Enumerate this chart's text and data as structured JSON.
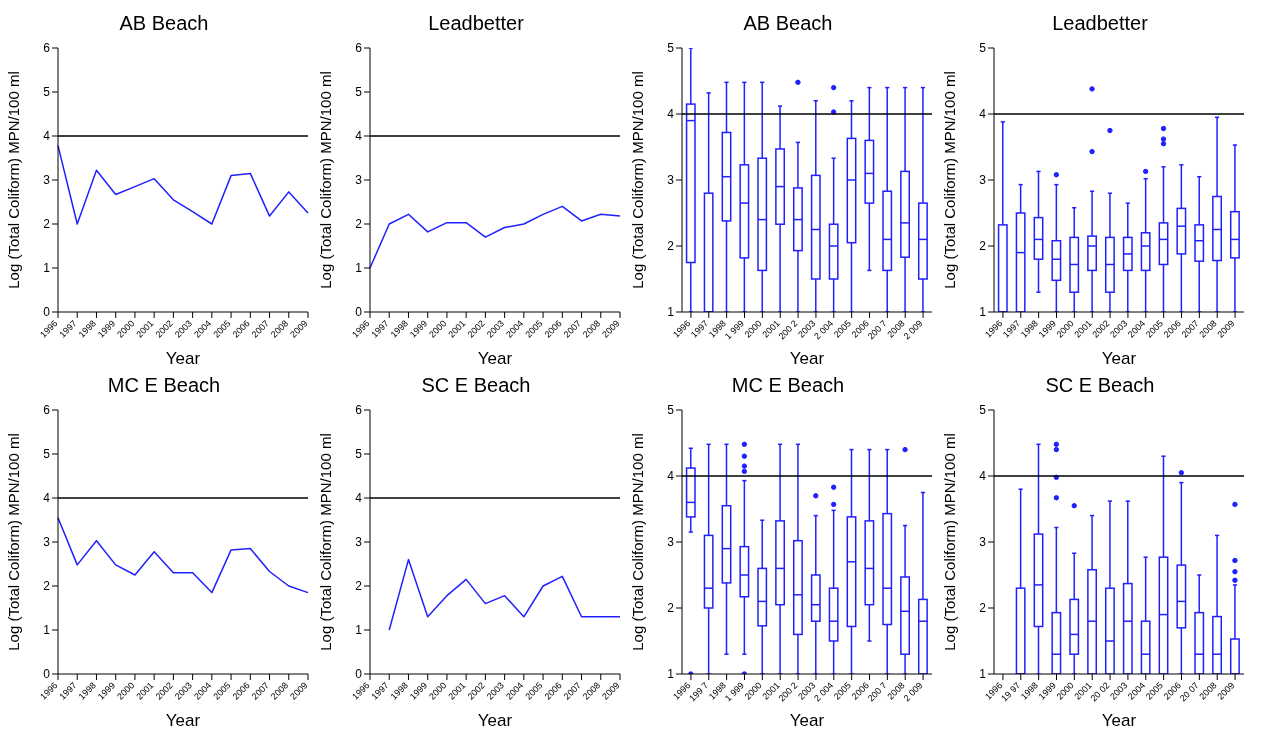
{
  "chart_data": [
    {
      "type": "line",
      "title": "AB Beach",
      "xlabel": "Year",
      "ylabel": "Log (Total Coliform) MPN/100 ml",
      "categories": [
        "1996",
        "1997",
        "1998",
        "1999",
        "2000",
        "2001",
        "2002",
        "2003",
        "2004",
        "2005",
        "2006",
        "2007",
        "2008",
        "2009"
      ],
      "color": "#2020ff",
      "values": [
        3.78,
        2.0,
        3.22,
        2.67,
        2.85,
        3.03,
        2.55,
        2.28,
        2.0,
        3.1,
        3.15,
        2.18,
        2.73,
        2.25
      ],
      "ylim": [
        0,
        6
      ],
      "yticks": [
        0,
        1,
        2,
        3,
        4,
        5,
        6
      ],
      "ref_lines": [
        {
          "axis": "y",
          "value": 4,
          "color": "#000000"
        }
      ]
    },
    {
      "type": "line",
      "title": "Leadbetter",
      "xlabel": "Year",
      "ylabel": "Log (Total Coliform) MPN/100 ml",
      "categories": [
        "1996",
        "1997",
        "1998",
        "1999",
        "2000",
        "2001",
        "2002",
        "2003",
        "2004",
        "2005",
        "2006",
        "2007",
        "2008",
        "2009"
      ],
      "color": "#2020ff",
      "values": [
        1.0,
        2.0,
        2.22,
        1.82,
        2.03,
        2.03,
        1.7,
        1.92,
        2.0,
        2.22,
        2.4,
        2.07,
        2.22,
        2.18
      ],
      "ylim": [
        0,
        6
      ],
      "yticks": [
        0,
        1,
        2,
        3,
        4,
        5,
        6
      ],
      "ref_lines": [
        {
          "axis": "y",
          "value": 4,
          "color": "#000000"
        }
      ]
    },
    {
      "type": "box",
      "title": "AB Beach",
      "xlabel": "Year",
      "ylabel": "Log (Total Coliform) MPN/100 ml",
      "categories": [
        "1996",
        "1997",
        "1998",
        "1 999",
        "2000",
        "2001",
        "200 2",
        "2003",
        "2 004",
        "2005",
        "2006",
        "200 7",
        "2008",
        "2 009"
      ],
      "color": "#2020ff",
      "ylim": [
        1,
        5
      ],
      "yticks": [
        1,
        2,
        3,
        4,
        5
      ],
      "ref_lines": [
        {
          "axis": "y",
          "value": 4,
          "color": "#000000"
        }
      ],
      "boxes": [
        {
          "low": 1,
          "q1": 1.75,
          "median": 3.9,
          "q3": 4.15,
          "high": 5
        },
        {
          "low": 1,
          "q1": 1,
          "median": 1,
          "q3": 2.8,
          "high": 4.32
        },
        {
          "low": 1,
          "q1": 2.38,
          "median": 3.05,
          "q3": 3.72,
          "high": 4.48
        },
        {
          "low": 1,
          "q1": 1.82,
          "median": 2.65,
          "q3": 3.23,
          "high": 4.48
        },
        {
          "low": 1,
          "q1": 1.63,
          "median": 2.4,
          "q3": 3.33,
          "high": 4.48
        },
        {
          "low": 1,
          "q1": 2.33,
          "median": 2.9,
          "q3": 3.47,
          "high": 4.12
        },
        {
          "low": 1,
          "q1": 1.93,
          "median": 2.4,
          "q3": 2.88,
          "high": 3.57,
          "outliers": [
            4.48
          ]
        },
        {
          "low": 1,
          "q1": 1.5,
          "median": 2.25,
          "q3": 3.07,
          "high": 4.2
        },
        {
          "low": 1,
          "q1": 1.5,
          "median": 2.0,
          "q3": 2.33,
          "high": 3.33,
          "outliers": [
            4.03,
            4.4
          ]
        },
        {
          "low": 1,
          "q1": 2.05,
          "median": 3.0,
          "q3": 3.63,
          "high": 4.2
        },
        {
          "low": 1.63,
          "q1": 2.65,
          "median": 3.1,
          "q3": 3.6,
          "high": 4.4
        },
        {
          "low": 1,
          "q1": 1.63,
          "median": 2.1,
          "q3": 2.83,
          "high": 4.4
        },
        {
          "low": 1,
          "q1": 1.83,
          "median": 2.35,
          "q3": 3.13,
          "high": 4.4
        },
        {
          "low": 1,
          "q1": 1.5,
          "median": 2.1,
          "q3": 2.65,
          "high": 4.4
        }
      ]
    },
    {
      "type": "box",
      "title": "Leadbetter",
      "xlabel": "Year",
      "ylabel": "Log (Total Coliform) MPN/100 ml",
      "categories": [
        "1996",
        "1997",
        "1998",
        "1999",
        "2000",
        "2001",
        "2002",
        "2003",
        "2004",
        "2005",
        "2006",
        "2007",
        "2008",
        "2009"
      ],
      "color": "#2020ff",
      "ylim": [
        1,
        5
      ],
      "yticks": [
        1,
        2,
        3,
        4,
        5
      ],
      "ref_lines": [
        {
          "axis": "y",
          "value": 4,
          "color": "#000000"
        }
      ],
      "boxes": [
        {
          "low": 1,
          "q1": 1,
          "median": 1,
          "q3": 2.32,
          "high": 3.88
        },
        {
          "low": 1,
          "q1": 1,
          "median": 1.9,
          "q3": 2.5,
          "high": 2.93
        },
        {
          "low": 1.3,
          "q1": 1.8,
          "median": 2.1,
          "q3": 2.43,
          "high": 3.13
        },
        {
          "low": 1,
          "q1": 1.48,
          "median": 1.8,
          "q3": 2.08,
          "high": 2.93,
          "outliers": [
            3.08
          ]
        },
        {
          "low": 1,
          "q1": 1.3,
          "median": 1.72,
          "q3": 2.13,
          "high": 2.58
        },
        {
          "low": 1,
          "q1": 1.63,
          "median": 2.0,
          "q3": 2.15,
          "high": 2.83,
          "outliers": [
            3.43,
            4.38
          ]
        },
        {
          "low": 1,
          "q1": 1.3,
          "median": 1.72,
          "q3": 2.13,
          "high": 2.8,
          "outliers": [
            3.75
          ]
        },
        {
          "low": 1,
          "q1": 1.63,
          "median": 1.88,
          "q3": 2.13,
          "high": 2.65
        },
        {
          "low": 1,
          "q1": 1.63,
          "median": 2.0,
          "q3": 2.2,
          "high": 3.02,
          "outliers": [
            3.13
          ]
        },
        {
          "low": 1,
          "q1": 1.72,
          "median": 2.1,
          "q3": 2.35,
          "high": 3.2,
          "outliers": [
            3.55,
            3.62,
            3.78
          ]
        },
        {
          "low": 1,
          "q1": 1.88,
          "median": 2.3,
          "q3": 2.57,
          "high": 3.23
        },
        {
          "low": 1,
          "q1": 1.77,
          "median": 2.08,
          "q3": 2.32,
          "high": 3.05
        },
        {
          "low": 1,
          "q1": 1.78,
          "median": 2.25,
          "q3": 2.75,
          "high": 3.95
        },
        {
          "low": 1,
          "q1": 1.82,
          "median": 2.1,
          "q3": 2.52,
          "high": 3.53
        }
      ]
    },
    {
      "type": "line",
      "title": "MC E Beach",
      "xlabel": "Year",
      "ylabel": "Log (Total Coliform) MPN/100 ml",
      "categories": [
        "1996",
        "1997",
        "1998",
        "1999",
        "2000",
        "2001",
        "2002",
        "2003",
        "2004",
        "2005",
        "2006",
        "2007",
        "2008",
        "2009"
      ],
      "color": "#2020ff",
      "values": [
        3.55,
        2.48,
        3.03,
        2.48,
        2.25,
        2.78,
        2.3,
        2.3,
        1.85,
        2.82,
        2.85,
        2.33,
        2.0,
        1.85
      ],
      "ylim": [
        0,
        6
      ],
      "yticks": [
        0,
        1,
        2,
        3,
        4,
        5,
        6
      ],
      "ref_lines": [
        {
          "axis": "y",
          "value": 4,
          "color": "#000000"
        }
      ]
    },
    {
      "type": "line",
      "title": "SC E Beach",
      "xlabel": "Year",
      "ylabel": "Log (Total Coliform) MPN/100 ml",
      "categories": [
        "1996",
        "1997",
        "1998",
        "1999",
        "2000",
        "2001",
        "2002",
        "2003",
        "2004",
        "2005",
        "2006",
        "2007",
        "2008",
        "2009"
      ],
      "color": "#2020ff",
      "values": [
        null,
        1.0,
        2.6,
        1.3,
        1.78,
        2.15,
        1.6,
        1.78,
        1.3,
        2.0,
        2.22,
        1.3,
        1.3,
        1.3
      ],
      "ylim": [
        0,
        6
      ],
      "yticks": [
        0,
        1,
        2,
        3,
        4,
        5,
        6
      ],
      "ref_lines": [
        {
          "axis": "y",
          "value": 4,
          "color": "#000000"
        }
      ]
    },
    {
      "type": "box",
      "title": "MC E Beach",
      "xlabel": "Year",
      "ylabel": "Log (Total Coliform) MPN/100 ml",
      "categories": [
        "1996",
        "199 7",
        "1998",
        "1 999",
        "2000",
        "2001",
        "200 2",
        "2003",
        "2 004",
        "2005",
        "2006",
        "200 7",
        "2008",
        "2 009"
      ],
      "color": "#2020ff",
      "ylim": [
        1,
        5
      ],
      "yticks": [
        1,
        2,
        3,
        4,
        5
      ],
      "ref_lines": [
        {
          "axis": "y",
          "value": 4,
          "color": "#000000"
        }
      ],
      "boxes": [
        {
          "low": 3.15,
          "q1": 3.38,
          "median": 3.6,
          "q3": 4.12,
          "high": 4.42,
          "outliers": [
            1.0
          ]
        },
        {
          "low": 1,
          "q1": 2.0,
          "median": 2.3,
          "q3": 3.1,
          "high": 4.48
        },
        {
          "low": 1.3,
          "q1": 2.38,
          "median": 2.9,
          "q3": 3.55,
          "high": 4.48
        },
        {
          "low": 1.3,
          "q1": 2.17,
          "median": 2.5,
          "q3": 2.93,
          "high": 3.93,
          "outliers": [
            1.0,
            4.07,
            4.15,
            4.3,
            4.48
          ]
        },
        {
          "low": 1,
          "q1": 1.73,
          "median": 2.1,
          "q3": 2.6,
          "high": 3.33
        },
        {
          "low": 1,
          "q1": 2.05,
          "median": 2.6,
          "q3": 3.32,
          "high": 4.48
        },
        {
          "low": 1,
          "q1": 1.6,
          "median": 2.2,
          "q3": 3.02,
          "high": 4.48
        },
        {
          "low": 1,
          "q1": 1.8,
          "median": 2.05,
          "q3": 2.5,
          "high": 3.4,
          "outliers": [
            3.7
          ]
        },
        {
          "low": 1,
          "q1": 1.5,
          "median": 1.8,
          "q3": 2.3,
          "high": 3.48,
          "outliers": [
            3.57,
            3.83
          ]
        },
        {
          "low": 1,
          "q1": 1.72,
          "median": 2.7,
          "q3": 3.38,
          "high": 4.4
        },
        {
          "low": 1.5,
          "q1": 2.05,
          "median": 2.6,
          "q3": 3.32,
          "high": 4.4
        },
        {
          "low": 1,
          "q1": 1.75,
          "median": 2.3,
          "q3": 3.43,
          "high": 4.4
        },
        {
          "low": 1,
          "q1": 1.3,
          "median": 1.95,
          "q3": 2.47,
          "high": 3.25,
          "outliers": [
            4.4
          ]
        },
        {
          "low": 1,
          "q1": 1,
          "median": 1.8,
          "q3": 2.13,
          "high": 3.75
        }
      ]
    },
    {
      "type": "box",
      "title": "SC E Beach",
      "xlabel": "Year",
      "ylabel": "Log (Total Coliform) MPN/100 ml",
      "categories": [
        "1996",
        "19 97",
        "1998",
        "1999",
        "2000",
        "2001",
        "20 02",
        "2003",
        "2004",
        "2005",
        "2006",
        "20 07",
        "2008",
        "2009"
      ],
      "color": "#2020ff",
      "ylim": [
        1,
        5
      ],
      "yticks": [
        1,
        2,
        3,
        4,
        5
      ],
      "ref_lines": [
        {
          "axis": "y",
          "value": 4,
          "color": "#000000"
        }
      ],
      "boxes": [
        null,
        {
          "low": 1,
          "q1": 1,
          "median": 1,
          "q3": 2.3,
          "high": 3.8
        },
        {
          "low": 1,
          "q1": 1.72,
          "median": 2.35,
          "q3": 3.12,
          "high": 4.48
        },
        {
          "low": 1,
          "q1": 1,
          "median": 1.3,
          "q3": 1.93,
          "high": 3.22,
          "outliers": [
            3.67,
            3.98,
            4.4,
            4.48
          ]
        },
        {
          "low": 1,
          "q1": 1.3,
          "median": 1.6,
          "q3": 2.13,
          "high": 2.83,
          "outliers": [
            3.55
          ]
        },
        {
          "low": 1,
          "q1": 1,
          "median": 1.8,
          "q3": 2.58,
          "high": 3.4
        },
        {
          "low": 1,
          "q1": 1,
          "median": 1.5,
          "q3": 2.3,
          "high": 3.62
        },
        {
          "low": 1,
          "q1": 1,
          "median": 1.8,
          "q3": 2.37,
          "high": 3.62
        },
        {
          "low": 1,
          "q1": 1,
          "median": 1.3,
          "q3": 1.8,
          "high": 2.77
        },
        {
          "low": 1,
          "q1": 1,
          "median": 1.9,
          "q3": 2.77,
          "high": 4.3
        },
        {
          "low": 1,
          "q1": 1.7,
          "median": 2.1,
          "q3": 2.65,
          "high": 3.9,
          "outliers": [
            4.05
          ]
        },
        {
          "low": 1,
          "q1": 1,
          "median": 1.3,
          "q3": 1.93,
          "high": 2.5
        },
        {
          "low": 1,
          "q1": 1,
          "median": 1.3,
          "q3": 1.87,
          "high": 3.1
        },
        {
          "low": 1,
          "q1": 1,
          "median": 1,
          "q3": 1.53,
          "high": 2.35,
          "outliers": [
            2.42,
            2.55,
            2.72,
            3.57
          ]
        }
      ]
    }
  ]
}
